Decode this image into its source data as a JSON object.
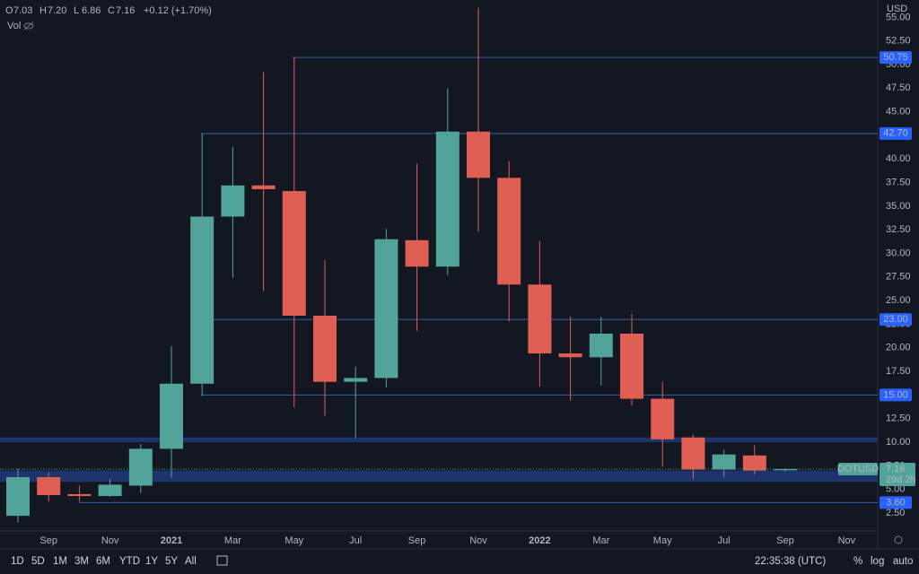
{
  "header": {
    "ohlc": [
      {
        "key": "O",
        "value": "7.03"
      },
      {
        "key": "H",
        "value": "7.20"
      },
      {
        "key": "L",
        "value": "6.86"
      },
      {
        "key": "C",
        "value": "7.16"
      }
    ],
    "change": "+0.12 (+1.70%)",
    "vol": "Vol",
    "currency": "USD"
  },
  "chart_data": {
    "type": "candlestick",
    "categories": [
      null,
      "Sep",
      null,
      "Nov",
      null,
      "2021",
      null,
      "Mar",
      null,
      "May",
      null,
      "Jul",
      null,
      "Sep",
      null,
      "Nov",
      null,
      "2022",
      null,
      "Mar",
      null,
      "May",
      null,
      "Jul",
      null,
      "Sep",
      null,
      "Nov"
    ],
    "open": [
      2.2,
      6.3,
      4.5,
      4.3,
      5.4,
      9.3,
      16.2,
      33.9,
      37.2,
      36.6,
      23.4,
      16.4,
      16.8,
      31.4,
      28.6,
      42.9,
      38.0,
      26.7,
      19.4,
      19.0,
      21.5,
      14.6,
      10.5,
      7.1,
      8.6,
      7.03,
      null,
      null
    ],
    "high": [
      7.2,
      6.8,
      5.4,
      6.1,
      9.8,
      20.2,
      42.7,
      41.3,
      49.2,
      50.75,
      29.3,
      18.0,
      32.6,
      39.5,
      47.5,
      56.0,
      39.8,
      31.3,
      23.3,
      23.3,
      23.6,
      16.4,
      10.8,
      9.2,
      9.7,
      7.2,
      null,
      null
    ],
    "low": [
      1.5,
      3.7,
      3.7,
      4.2,
      4.6,
      6.2,
      14.9,
      27.4,
      26.0,
      13.7,
      12.8,
      10.4,
      15.8,
      21.8,
      27.7,
      32.3,
      22.8,
      15.9,
      14.4,
      16.0,
      13.9,
      7.4,
      6.1,
      6.3,
      6.6,
      6.86,
      null,
      null
    ],
    "close": [
      6.3,
      4.4,
      4.3,
      5.5,
      9.3,
      16.2,
      33.9,
      37.2,
      36.8,
      23.4,
      16.4,
      16.8,
      31.5,
      28.6,
      42.9,
      38.0,
      26.7,
      19.4,
      19.0,
      21.5,
      14.6,
      10.3,
      7.1,
      8.7,
      7.0,
      7.16,
      null,
      null
    ],
    "up_color": "#52a49a",
    "down_color": "#e05f55",
    "ylim": [
      0.6,
      56.84
    ],
    "yticks": [
      {
        "value": 2.5,
        "label": "2.50"
      },
      {
        "value": 5,
        "label": "5.00"
      },
      {
        "value": 7.5,
        "label": "7.50"
      },
      {
        "value": 10,
        "label": "10.00"
      },
      {
        "value": 12.5,
        "label": "12.50"
      },
      {
        "value": 15,
        "label": "15.00"
      },
      {
        "value": 17.5,
        "label": "17.50"
      },
      {
        "value": 20,
        "label": "20.00"
      },
      {
        "value": 22.5,
        "label": "22.50"
      },
      {
        "value": 25,
        "label": "25.00"
      },
      {
        "value": 27.5,
        "label": "27.50"
      },
      {
        "value": 30,
        "label": "30.00"
      },
      {
        "value": 32.5,
        "label": "32.50"
      },
      {
        "value": 35,
        "label": "35.00"
      },
      {
        "value": 37.5,
        "label": "37.50"
      },
      {
        "value": 40,
        "label": "40.00"
      },
      {
        "value": 42.5,
        "label": "42.50"
      },
      {
        "value": 45,
        "label": "45.00"
      },
      {
        "value": 47.5,
        "label": "47.50"
      },
      {
        "value": 50,
        "label": "50.00"
      },
      {
        "value": 52.5,
        "label": "52.50"
      },
      {
        "value": 55,
        "label": "55.00"
      }
    ],
    "levels": [
      {
        "value": 50.75,
        "label": "50.75"
      },
      {
        "value": 42.7,
        "label": "42.70"
      },
      {
        "value": 23,
        "label": "23.00"
      },
      {
        "value": 15,
        "label": "15.00"
      },
      {
        "value": 3.6,
        "label": "3.60"
      }
    ],
    "zones": [
      [
        10.0,
        10.5
      ],
      [
        5.8,
        7.0
      ]
    ],
    "last_price": {
      "symbol": "DOTUSD",
      "value": 7.16,
      "label": "7.16",
      "countdown": "29d 2h"
    },
    "grid": false
  },
  "toolbar": {
    "ranges": [
      "1D",
      "5D",
      "1M",
      "3M",
      "6M",
      "YTD",
      "1Y",
      "5Y",
      "All"
    ],
    "time": "22:35:38 (UTC)",
    "percent": "%",
    "log": "log",
    "auto": "auto"
  }
}
